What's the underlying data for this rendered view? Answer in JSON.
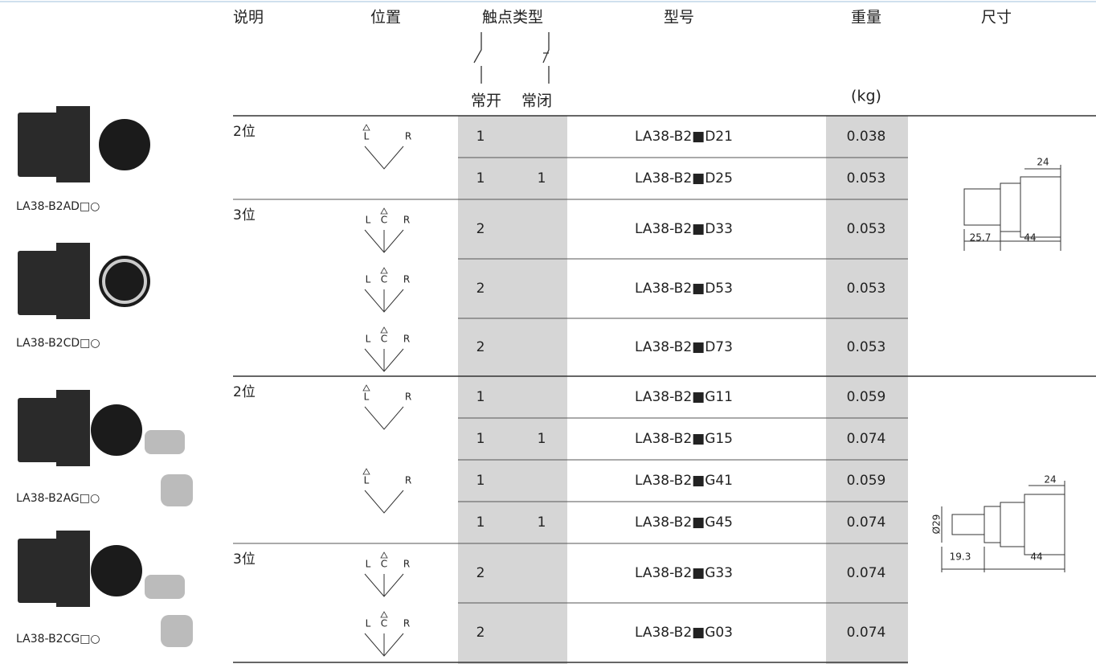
{
  "header": {
    "columns": [
      "说明",
      "位置",
      "触点类型",
      "型号",
      "重量",
      "尺寸"
    ],
    "contact_types": [
      "常开",
      "常闭"
    ],
    "weight_unit": "(kg)"
  },
  "products": [
    "LA38-B2AD□○",
    "LA38-B2CD□○",
    "LA38-B2AG□○",
    "LA38-B2CG□○"
  ],
  "rows": [
    {
      "desc": "2位",
      "no": "1",
      "model": "LA38-B2■D21",
      "weight": "0.038"
    },
    {
      "no": "1",
      "nc": "1",
      "model": "LA38-B2■D25",
      "weight": "0.053"
    },
    {
      "desc": "3位",
      "no": "2",
      "model": "LA38-B2■D33",
      "weight": "0.053"
    },
    {
      "no": "2",
      "model": "LA38-B2■D53",
      "weight": "0.053"
    },
    {
      "no": "2",
      "model": "LA38-B2■D73",
      "weight": "0.053"
    },
    {
      "desc": "2位",
      "no": "1",
      "model": "LA38-B2■G11",
      "weight": "0.059"
    },
    {
      "no": "1",
      "nc": "1",
      "model": "LA38-B2■G15",
      "weight": "0.074"
    },
    {
      "no": "1",
      "model": "LA38-B2■G41",
      "weight": "0.059"
    },
    {
      "no": "1",
      "nc": "1",
      "model": "LA38-B2■G45",
      "weight": "0.074"
    },
    {
      "desc": "3位",
      "no": "2",
      "model": "LA38-B2■G33",
      "weight": "0.074"
    },
    {
      "no": "2",
      "model": "LA38-B2■G03",
      "weight": "0.074"
    }
  ],
  "positions": [
    {
      "labels": [
        "L",
        "R"
      ]
    },
    {
      "labels": [
        "L",
        "C",
        "R"
      ]
    },
    {
      "labels": [
        "L",
        "C",
        "R"
      ]
    },
    {
      "labels": [
        "L",
        "C",
        "R"
      ]
    },
    {
      "labels": [
        "L",
        "R"
      ]
    },
    {
      "labels": [
        "L",
        "R"
      ]
    },
    {
      "labels": [
        "L",
        "C",
        "R"
      ]
    },
    {
      "labels": [
        "L",
        "C",
        "R"
      ]
    }
  ],
  "dimensions": [
    {
      "labels": [
        "24",
        "25.7",
        "44"
      ]
    },
    {
      "labels": [
        "24",
        "Ø29",
        "19.3",
        "44"
      ]
    }
  ]
}
